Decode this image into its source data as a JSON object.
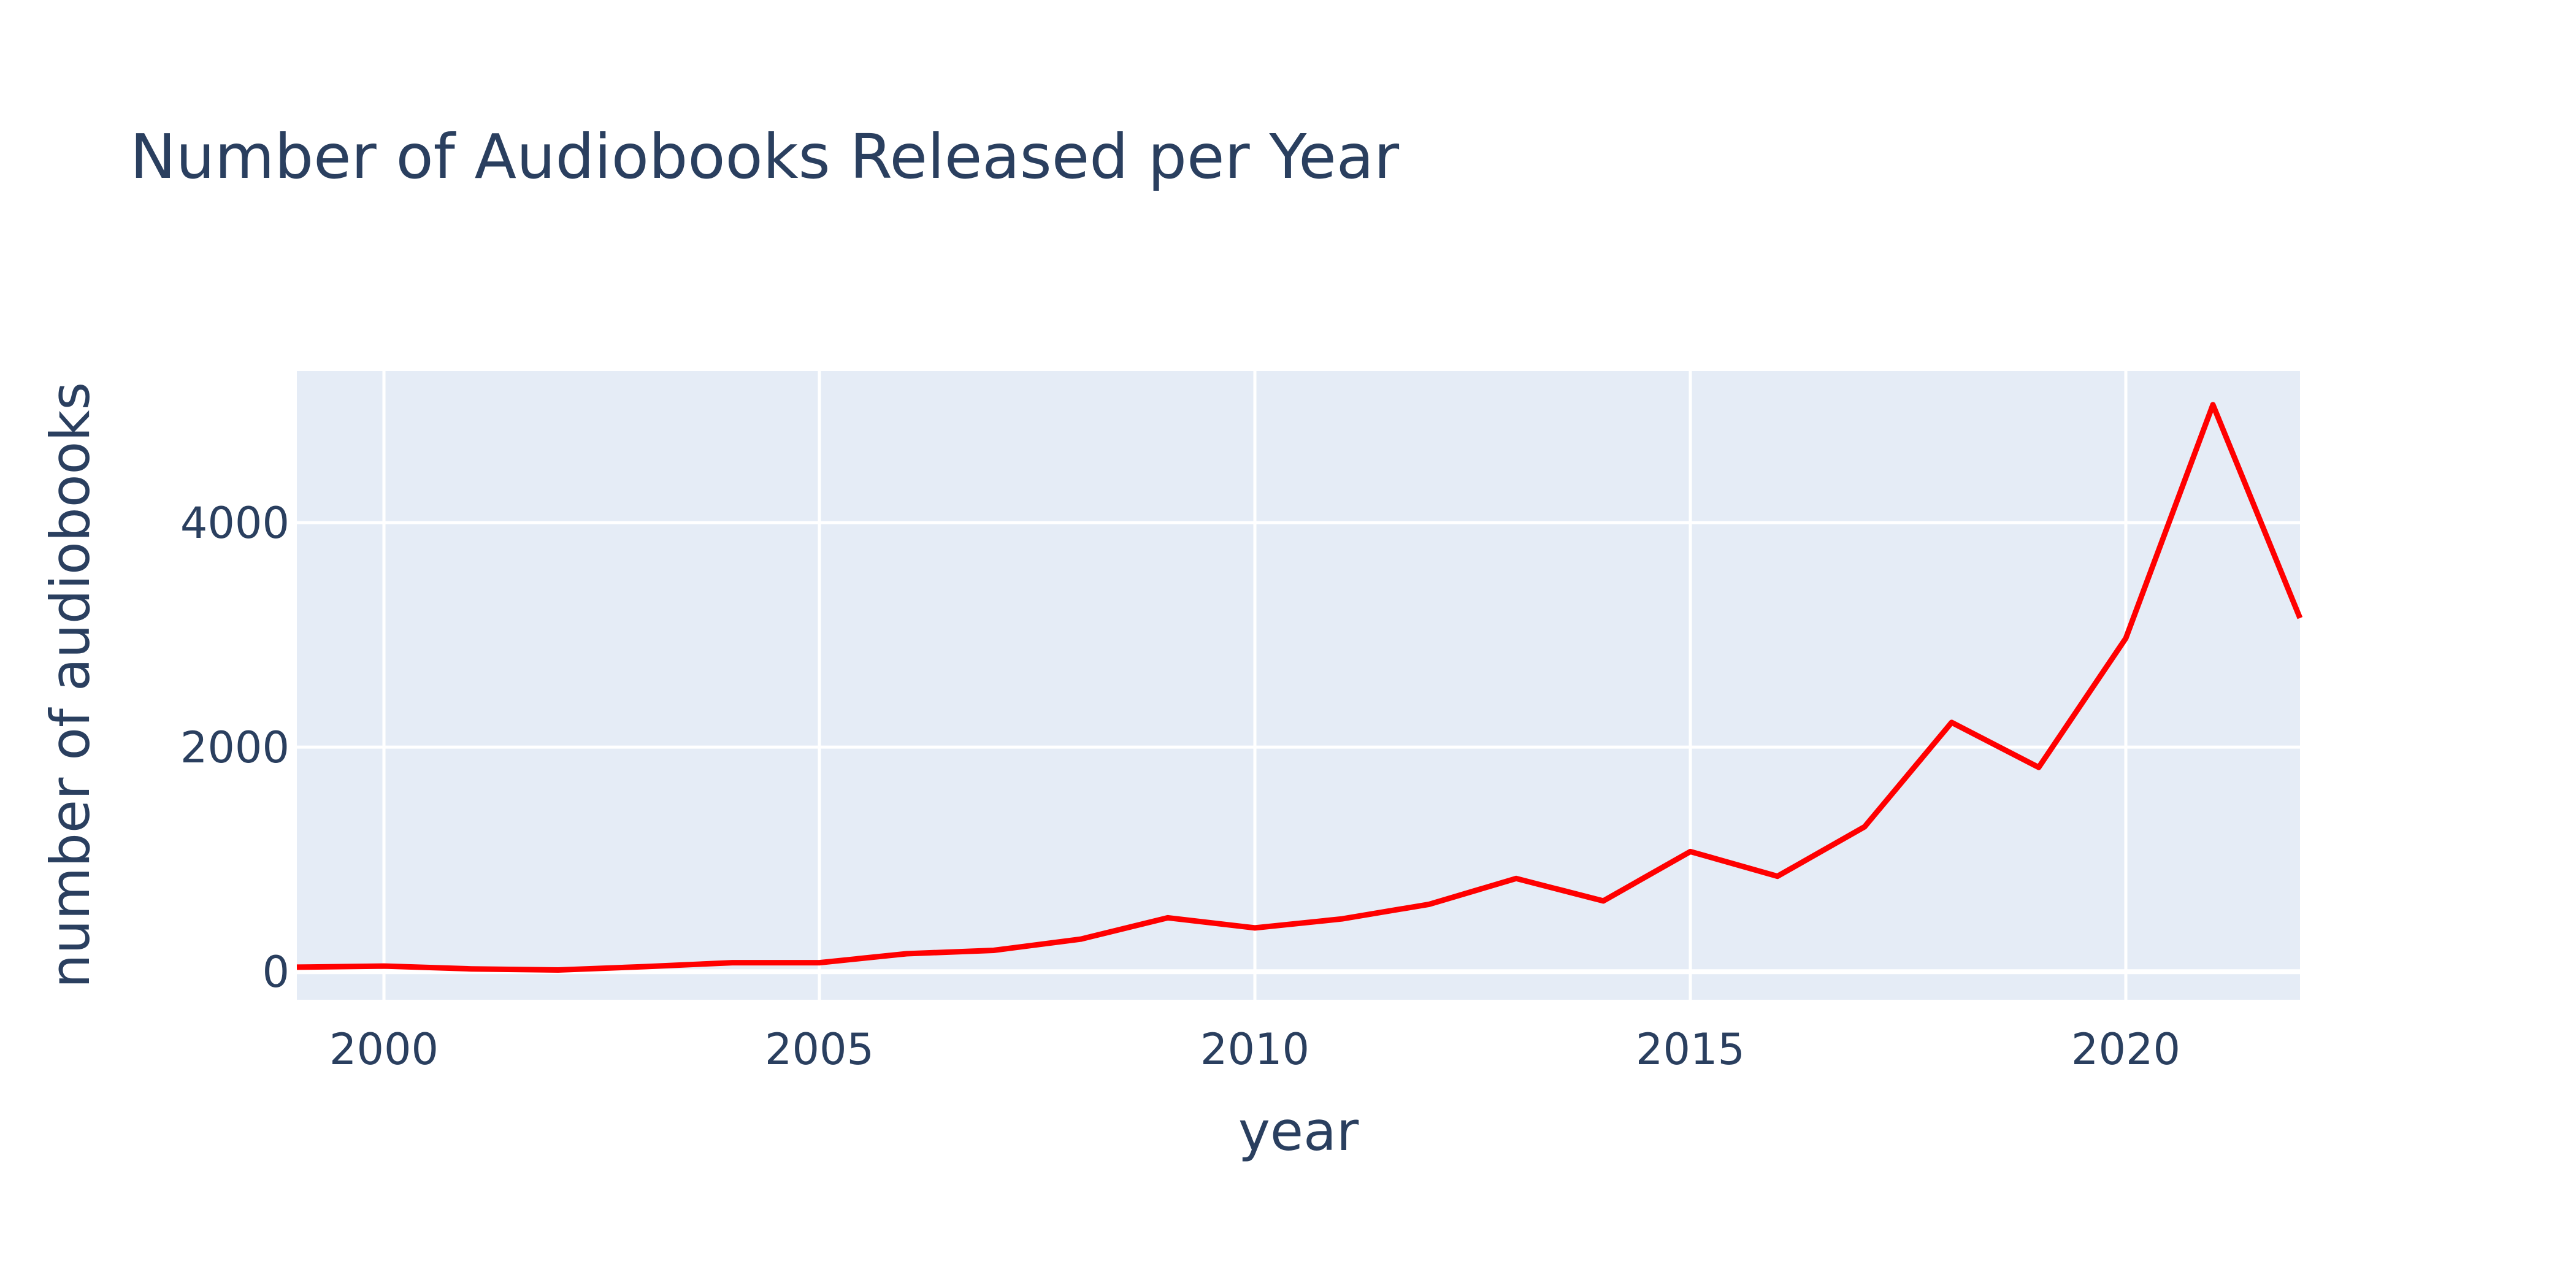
{
  "chart_data": {
    "type": "line",
    "title": "Number of Audiobooks Released per Year",
    "xlabel": "year",
    "ylabel": "number of audiobooks",
    "xlim": [
      1999,
      2022
    ],
    "ylim": [
      -250,
      5350
    ],
    "x_ticks": [
      2000,
      2005,
      2010,
      2015,
      2020
    ],
    "x_tick_labels": [
      "2000",
      "2005",
      "2010",
      "2015",
      "2020"
    ],
    "y_ticks": [
      0,
      2000,
      4000
    ],
    "y_tick_labels": [
      "0",
      "2000",
      "4000"
    ],
    "grid": true,
    "series": [
      {
        "name": "audiobooks",
        "color": "#ff0000",
        "x": [
          1999,
          2000,
          2001,
          2002,
          2003,
          2004,
          2005,
          2006,
          2007,
          2008,
          2009,
          2010,
          2011,
          2012,
          2013,
          2014,
          2015,
          2016,
          2017,
          2018,
          2019,
          2020,
          2021,
          2022
        ],
        "values": [
          40,
          50,
          25,
          15,
          45,
          80,
          80,
          160,
          190,
          290,
          480,
          390,
          470,
          600,
          830,
          630,
          1070,
          850,
          1290,
          2220,
          1820,
          2970,
          5050,
          3150
        ]
      }
    ]
  },
  "colors": {
    "plot_bg": "#e5ecf6",
    "grid": "#ffffff",
    "text": "#2a3f5f",
    "line": "#ff0000"
  }
}
